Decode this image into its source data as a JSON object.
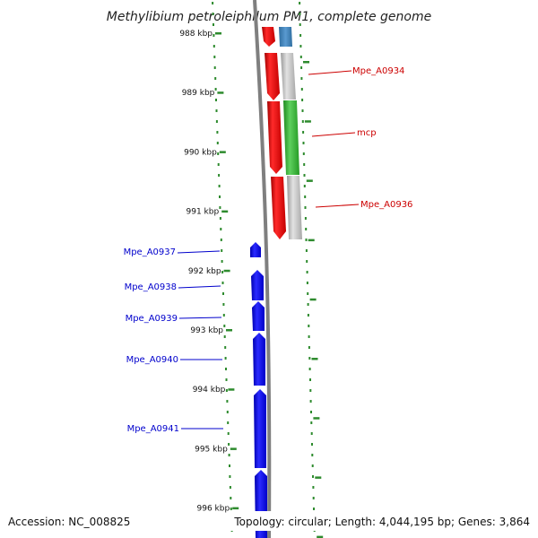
{
  "title": "Methylibium petroleiphilum PM1, complete genome",
  "accession": "Accession: NC_008825",
  "topology": "Topology: circular; Length: 4,044,195 bp; Genes: 3,864",
  "colors": {
    "backbone": "#7f7f7f",
    "tick": "#2e8b2e",
    "forward_label": "#cc0000",
    "reverse_label": "#0000cc"
  },
  "ticks": [
    "988 kbp",
    "989 kbp",
    "990 kbp",
    "991 kbp",
    "992 kbp",
    "993 kbp",
    "994 kbp",
    "995 kbp",
    "996 kbp"
  ],
  "forward_labels": [
    {
      "text": "Mpe_A0934",
      "color": "#cc0000"
    },
    {
      "text": "mcp",
      "color": "#cc0000"
    },
    {
      "text": "Mpe_A0936",
      "color": "#cc0000"
    }
  ],
  "reverse_labels": [
    {
      "text": "Mpe_A0937",
      "color": "#0000cc"
    },
    {
      "text": "Mpe_A0938",
      "color": "#0000cc"
    },
    {
      "text": "Mpe_A0939",
      "color": "#0000cc"
    },
    {
      "text": "Mpe_A0940",
      "color": "#0000cc"
    },
    {
      "text": "Mpe_A0941",
      "color": "#0000cc"
    }
  ]
}
